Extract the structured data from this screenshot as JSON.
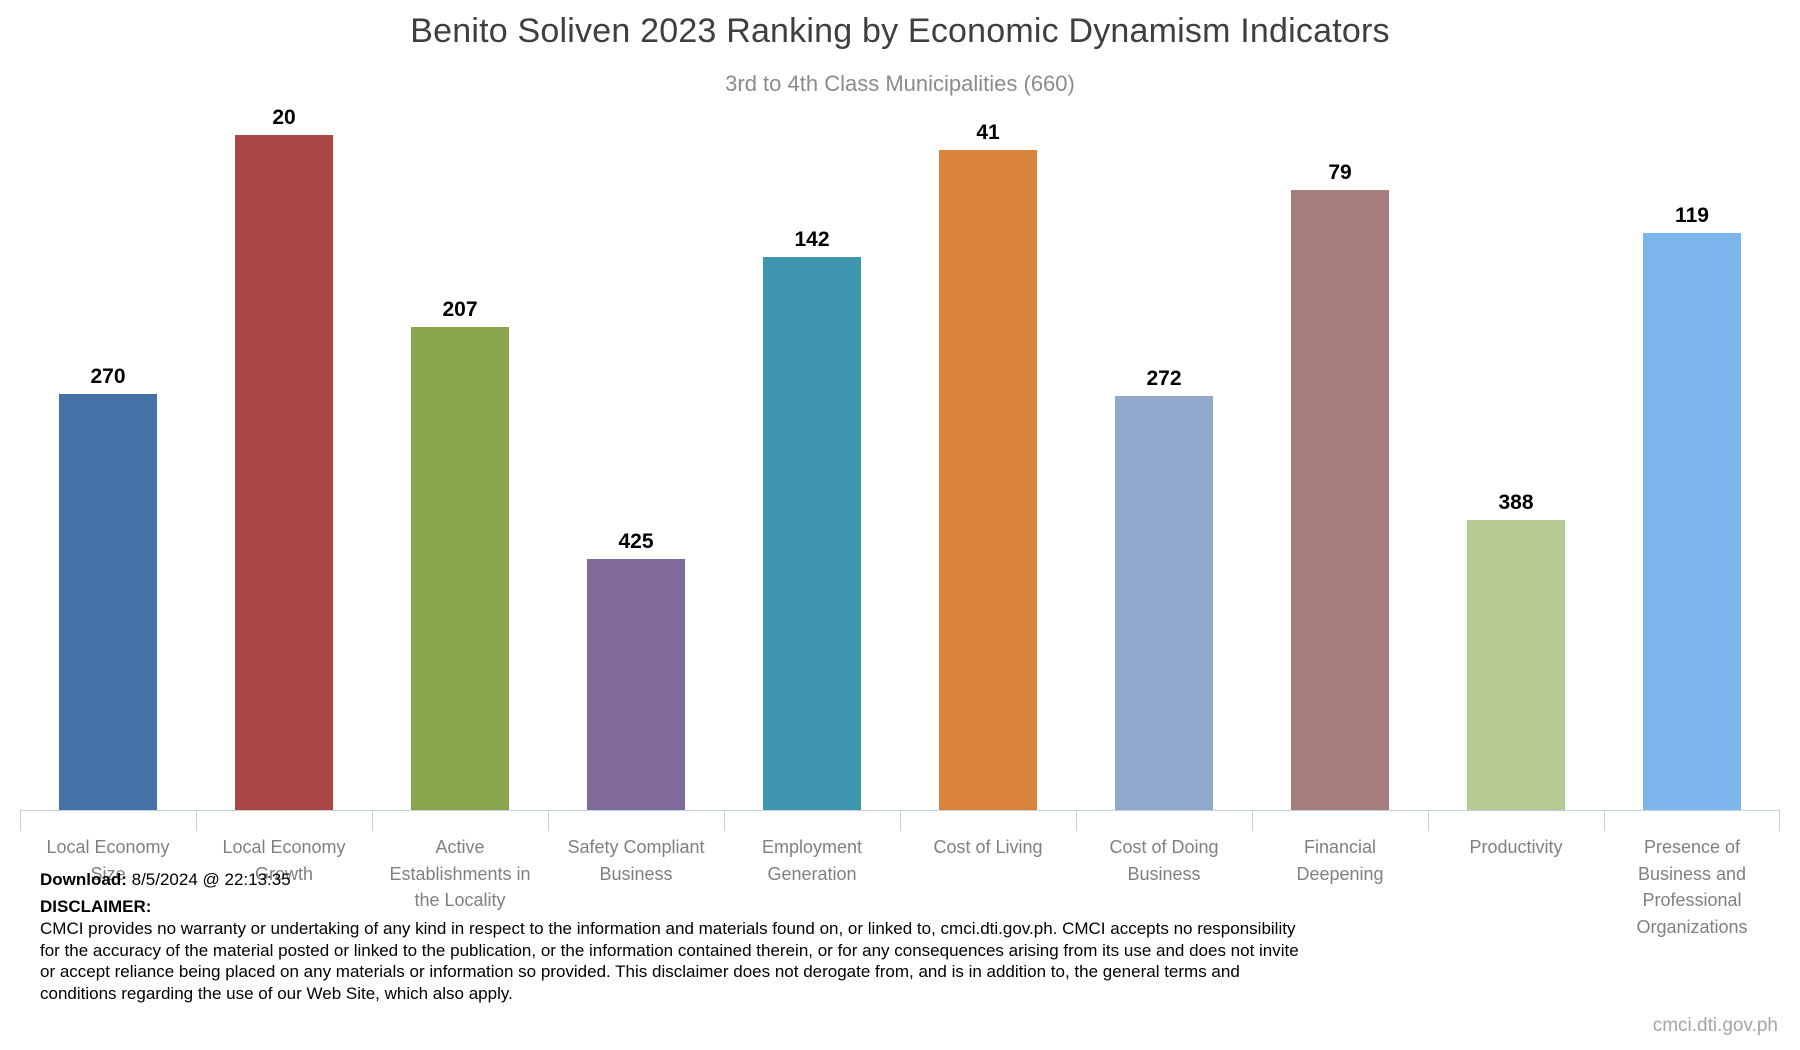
{
  "title": "Benito Soliven 2023 Ranking by Economic Dynamism Indicators",
  "subtitle": "3rd to 4th Class Municipalities (660)",
  "chart_data": {
    "type": "bar",
    "title": "Benito Soliven 2023 Ranking by Economic Dynamism Indicators",
    "subtitle": "3rd to 4th Class Municipalities (660)",
    "categories": [
      "Local Economy Size",
      "Local Economy Growth",
      "Active Establishments in the Locality",
      "Safety Compliant Business",
      "Employment Generation",
      "Cost of Living",
      "Cost of Doing Business",
      "Financial Deepening",
      "Productivity",
      "Presence of Business and Professional Organizations"
    ],
    "values": [
      270,
      20,
      207,
      425,
      142,
      41,
      272,
      79,
      388,
      119
    ],
    "value_meaning": "rank among 660 municipalities (bar height = 660 - rank)",
    "ylim": [
      0,
      660
    ],
    "xlabel": "",
    "ylabel": "",
    "grid": false,
    "legend": "none",
    "bar_colors": [
      "#4572a7",
      "#aa4643",
      "#89a54e",
      "#80699b",
      "#3d96ae",
      "#db843d",
      "#92a8cd",
      "#a47d7c",
      "#b5ca92",
      "#7cb5ec"
    ],
    "axis_color": "#c0d0e0"
  },
  "footer": {
    "download_label": "Download:",
    "download_value": "8/5/2024 @ 22:13:35",
    "disclaimer_label": "DISCLAIMER:",
    "disclaimer_lines": [
      "CMCI provides no warranty or undertaking of any kind in respect to the information and materials found on, or linked to, cmci.dti.gov.ph. CMCI accepts no responsibility",
      "for the accuracy of the material posted or linked to the publication, or the information contained therein, or for any consequences arising from its use and does not invite",
      "or accept reliance being placed on any materials or information so provided. This disclaimer does not derogate from, and is in addition to, the general terms and",
      "conditions regarding the use of our Web Site, which also apply."
    ],
    "watermark": "cmci.dti.gov.ph"
  }
}
